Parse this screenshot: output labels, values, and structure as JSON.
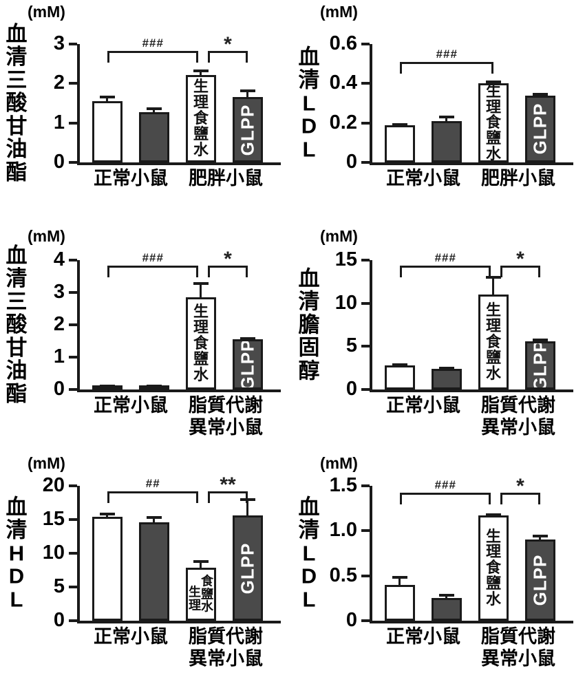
{
  "colors": {
    "ink": "#1a1a1a",
    "bar_dark": "#4a4a4a",
    "bar_white": "#ffffff"
  },
  "chart_data": [
    {
      "type": "bar",
      "title": "血清三酸甘油酯",
      "unit": "(mM)",
      "ylim": [
        0,
        3
      ],
      "yticks": [
        "0",
        "1",
        "2",
        "3"
      ],
      "groups": [
        [
          "正常小鼠"
        ],
        [
          "肥胖小鼠"
        ]
      ],
      "bars": [
        {
          "value": 1.55,
          "error": 0.13,
          "fill": "white"
        },
        {
          "value": 1.28,
          "error": 0.1,
          "fill": "dark"
        },
        {
          "value": 2.22,
          "error": 0.11,
          "fill": "white",
          "inner_label": "生理食鹽水",
          "inner_style": "vertical"
        },
        {
          "value": 1.65,
          "error": 0.19,
          "fill": "dark",
          "inner_label": "GLPP",
          "inner_style": "rotated"
        }
      ],
      "significance": [
        {
          "from": 0,
          "to": 2,
          "label": "###"
        },
        {
          "from": 2,
          "to": 3,
          "label": "*"
        }
      ]
    },
    {
      "type": "bar",
      "title": "血清LDL",
      "unit": "(mM)",
      "ylim": [
        0,
        0.6
      ],
      "yticks": [
        "0",
        "0.2",
        "0.4",
        "0.6"
      ],
      "groups": [
        [
          "正常小鼠"
        ],
        [
          "肥胖小鼠"
        ]
      ],
      "bars": [
        {
          "value": 0.19,
          "error": 0.006,
          "fill": "white"
        },
        {
          "value": 0.21,
          "error": 0.025,
          "fill": "dark"
        },
        {
          "value": 0.4,
          "error": 0.012,
          "fill": "white",
          "inner_label": "生理食鹽水",
          "inner_style": "vertical"
        },
        {
          "value": 0.34,
          "error": 0.008,
          "fill": "dark",
          "inner_label": "GLPP",
          "inner_style": "rotated"
        }
      ],
      "significance": [
        {
          "from": 0,
          "to": 2,
          "label": "###"
        }
      ]
    },
    {
      "type": "bar",
      "title": "血清三酸甘油酯",
      "unit": "(mM)",
      "ylim": [
        0,
        4
      ],
      "yticks": [
        "0",
        "1",
        "2",
        "3",
        "4"
      ],
      "groups": [
        [
          "正常小鼠"
        ],
        [
          "脂質代謝",
          "異常小鼠"
        ]
      ],
      "bars": [
        {
          "value": 0.1,
          "error": 0.02,
          "fill": "white"
        },
        {
          "value": 0.1,
          "error": 0.02,
          "fill": "dark"
        },
        {
          "value": 2.85,
          "error": 0.45,
          "fill": "white",
          "inner_label": "生理食鹽水",
          "inner_style": "vertical"
        },
        {
          "value": 1.55,
          "error": 0.04,
          "fill": "dark",
          "inner_label": "GLPP",
          "inner_style": "rotated"
        }
      ],
      "significance": [
        {
          "from": 0,
          "to": 2,
          "label": "###"
        },
        {
          "from": 2,
          "to": 3,
          "label": "*"
        }
      ]
    },
    {
      "type": "bar",
      "title": "血清膽固醇",
      "unit": "(mM)",
      "ylim": [
        0,
        15
      ],
      "yticks": [
        "0",
        "5",
        "10",
        "15"
      ],
      "groups": [
        [
          "正常小鼠"
        ],
        [
          "脂質代謝",
          "異常小鼠"
        ]
      ],
      "bars": [
        {
          "value": 2.8,
          "error": 0.12,
          "fill": "white"
        },
        {
          "value": 2.4,
          "error": 0.18,
          "fill": "dark"
        },
        {
          "value": 11.0,
          "error": 2.1,
          "fill": "white",
          "inner_label": "生理食鹽水",
          "inner_style": "vertical"
        },
        {
          "value": 5.6,
          "error": 0.2,
          "fill": "dark",
          "inner_label": "GLPP",
          "inner_style": "rotated"
        }
      ],
      "significance": [
        {
          "from": 0,
          "to": 2,
          "label": "###"
        },
        {
          "from": 2,
          "to": 3,
          "label": "*"
        }
      ]
    },
    {
      "type": "bar",
      "title": "血清HDL",
      "unit": "(mM)",
      "ylim": [
        0,
        20
      ],
      "yticks": [
        "0",
        "5",
        "10",
        "15",
        "20"
      ],
      "groups": [
        [
          "正常小鼠"
        ],
        [
          "脂質代謝",
          "異常小鼠"
        ]
      ],
      "bars": [
        {
          "value": 15.4,
          "error": 0.5,
          "fill": "white"
        },
        {
          "value": 14.6,
          "error": 0.8,
          "fill": "dark"
        },
        {
          "value": 7.9,
          "error": 1.0,
          "fill": "white",
          "inner_label": "生理食鹽水",
          "inner_style": "columns",
          "inner_cols": [
            "生理",
            "食鹽水"
          ]
        },
        {
          "value": 15.6,
          "error": 2.5,
          "fill": "dark",
          "inner_label": "GLPP",
          "inner_style": "rotated"
        }
      ],
      "significance": [
        {
          "from": 0,
          "to": 2,
          "label": "##"
        },
        {
          "from": 2,
          "to": 3,
          "label": "**"
        }
      ]
    },
    {
      "type": "bar",
      "title": "血清LDL",
      "unit": "(mM)",
      "ylim": [
        0,
        1.5
      ],
      "yticks": [
        "0",
        "0.5",
        "1.0",
        "1.5"
      ],
      "groups": [
        [
          "正常小鼠"
        ],
        [
          "脂質代謝",
          "異常小鼠"
        ]
      ],
      "bars": [
        {
          "value": 0.4,
          "error": 0.09,
          "fill": "white"
        },
        {
          "value": 0.25,
          "error": 0.04,
          "fill": "dark"
        },
        {
          "value": 1.17,
          "error": 0.02,
          "fill": "white",
          "inner_label": "生理食鹽水",
          "inner_style": "vertical"
        },
        {
          "value": 0.9,
          "error": 0.05,
          "fill": "dark",
          "inner_label": "GLPP",
          "inner_style": "rotated"
        }
      ],
      "significance": [
        {
          "from": 0,
          "to": 2,
          "label": "###"
        },
        {
          "from": 2,
          "to": 3,
          "label": "*"
        }
      ]
    }
  ]
}
